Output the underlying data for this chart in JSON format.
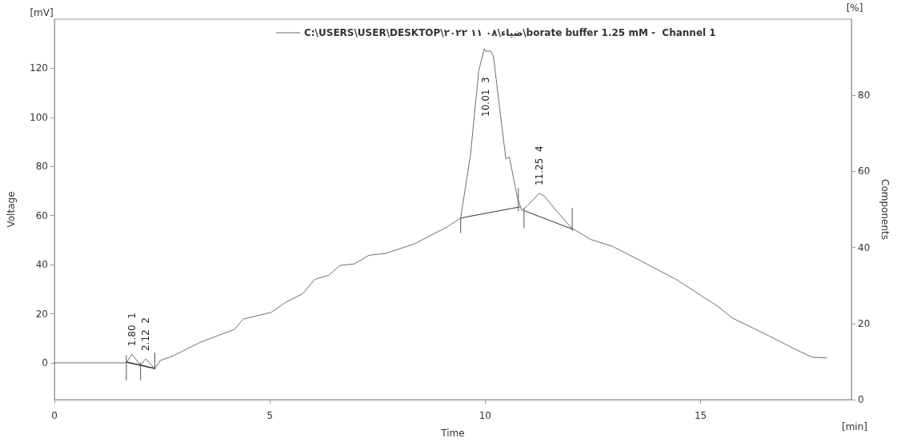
{
  "chart_data": {
    "type": "line",
    "xlabel": "Time",
    "ylabel": "Voltage",
    "y2label": "Components",
    "xlim": [
      0,
      18.5
    ],
    "xticks": [
      0,
      5,
      10,
      15
    ],
    "ylim": [
      -15,
      140
    ],
    "yticks": [
      0,
      20,
      40,
      60,
      80,
      100,
      120
    ],
    "y2lim": [
      0,
      100
    ],
    "y2ticks": [
      0,
      20,
      40,
      60,
      80
    ],
    "grid": false,
    "legend": "top",
    "marker": "none",
    "line_style": "solid",
    "series": [
      {
        "name": "C:\\USERS\\USER\\DESKTOP\\ضياء\\٠٨ ١١ ٢٠٢٢\\borate buffer 1.25 mM -  Channel 1",
        "color": "#6e6e6e",
        "x": [
          0,
          1.67,
          1.8,
          2.0,
          2.12,
          2.33,
          2.46,
          2.73,
          3.39,
          4.18,
          4.38,
          5.04,
          5.37,
          5.77,
          6.04,
          6.37,
          6.63,
          6.96,
          7.3,
          7.69,
          8.35,
          9.13,
          9.43,
          9.66,
          9.85,
          9.98,
          10.01,
          10.13,
          10.19,
          10.35,
          10.48,
          10.56,
          10.61,
          10.75,
          10.8,
          10.85,
          10.98,
          11.25,
          11.37,
          11.65,
          12.0,
          12.44,
          12.96,
          13.43,
          14.43,
          15.4,
          15.74,
          16.54,
          17.2,
          17.59,
          17.93
        ],
        "values": [
          0,
          0,
          3.5,
          -1,
          1.6,
          -2.3,
          1,
          2.6,
          8.4,
          13.6,
          17.8,
          20.6,
          24.7,
          28.2,
          34,
          35.7,
          39.7,
          40.3,
          43.8,
          44.6,
          48.4,
          55.5,
          59,
          85,
          119,
          128,
          127,
          127,
          125,
          101.6,
          83,
          83.8,
          79.5,
          67,
          64.6,
          62,
          64,
          69,
          68,
          62,
          55,
          50.3,
          47.4,
          43.2,
          34,
          23,
          18.2,
          11.4,
          5.5,
          2.3,
          2
        ]
      },
      {
        "type": "line",
        "color": "#333333",
        "x": [
          1.67,
          2.33
        ],
        "values": [
          0.3,
          -2.3
        ]
      },
      {
        "type": "line",
        "color": "#333333",
        "x": [
          9.43,
          10.8
        ],
        "values": [
          59,
          63.5
        ]
      },
      {
        "type": "line",
        "color": "#333333",
        "x": [
          10.9,
          12.02
        ],
        "values": [
          62,
          54.5
        ]
      },
      {
        "type": "line",
        "color": "#555555",
        "x": [
          1.67,
          1.67
        ],
        "values": [
          -7,
          3
        ]
      },
      {
        "type": "line",
        "color": "#555555",
        "x": [
          2.0,
          2.0
        ],
        "values": [
          -7,
          0
        ]
      },
      {
        "type": "line",
        "color": "#555555",
        "x": [
          2.33,
          2.33
        ],
        "values": [
          -2.3,
          4
        ]
      },
      {
        "type": "line",
        "color": "#555555",
        "x": [
          9.43,
          9.43
        ],
        "values": [
          53,
          59
        ]
      },
      {
        "type": "line",
        "color": "#555555",
        "x": [
          10.77,
          10.77
        ],
        "values": [
          62,
          71
        ]
      },
      {
        "type": "line",
        "color": "#555555",
        "x": [
          10.9,
          10.9
        ],
        "values": [
          55,
          63
        ]
      },
      {
        "type": "line",
        "color": "#555555",
        "x": [
          12.02,
          12.02
        ],
        "values": [
          54,
          63
        ]
      }
    ],
    "annotations": [
      {
        "text": "1.80  1",
        "x": 1.8,
        "y": 3.5
      },
      {
        "text": "2.12  2",
        "x": 2.12,
        "y": 1.6
      },
      {
        "text": "10.01  3",
        "x": 10.01,
        "y": 127
      },
      {
        "text": "11.25  4",
        "x": 11.25,
        "y": 69
      },
      "[mV]",
      "[%]",
      "[min]"
    ]
  }
}
